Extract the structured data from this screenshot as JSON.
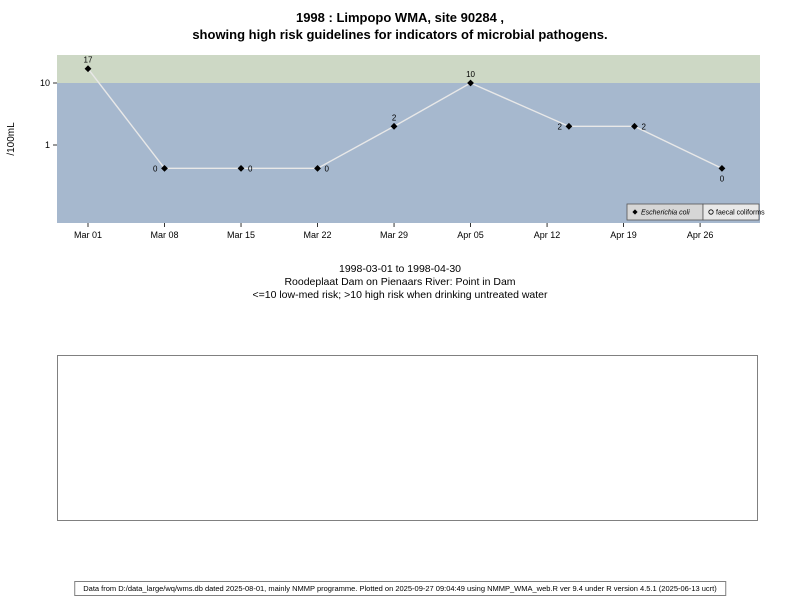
{
  "title": {
    "line1": "1998 : Limpopo WMA, site 90284 ,",
    "line2": "showing high risk guidelines for indicators of microbial pathogens."
  },
  "caption": {
    "line1": "1998-03-01 to 1998-04-30",
    "line2": "Roodeplaat Dam on Pienaars River: Point in Dam",
    "line3": "<=10 low-med risk; >10 high risk when drinking untreated water"
  },
  "footer": {
    "text": "Data from D:/data_large/wq/wms.db dated 2025-08-01, mainly NMMP programme. Plotted on 2025-09-27 09:04:49 using NMMP_WMA_web.R ver 9.4 under R version 4.5.1 (2025-06-13 ucrt)"
  },
  "chart_data": {
    "type": "line",
    "title": "1998 : Limpopo WMA, site 90284, showing high risk guidelines for indicators of microbial pathogens",
    "y_scale": "log",
    "ylabel": "/100mL",
    "xlabel": "",
    "y_ticks": [
      10,
      1
    ],
    "x_tick_labels": [
      "Mar 01",
      "Mar 08",
      "Mar 15",
      "Mar 22",
      "Mar 29",
      "Apr 05",
      "Apr 12",
      "Apr 19",
      "Apr 26"
    ],
    "x_ticks_days": [
      0,
      7,
      14,
      21,
      28,
      35,
      42,
      49,
      56
    ],
    "x_range_note": "1998-03-01 to 1998-04-30",
    "high_risk_threshold": 10,
    "zero_plot_value": 0.42,
    "legend_position": "bottom-right-inside",
    "series": [
      {
        "name": "Escherichia coli",
        "marker": "diamond",
        "points": [
          {
            "day": 0,
            "value": 17,
            "label_pos": "above"
          },
          {
            "day": 7,
            "value": 0,
            "label_pos": "left"
          },
          {
            "day": 14,
            "value": 0,
            "label_pos": "right"
          },
          {
            "day": 21,
            "value": 0,
            "label_pos": "right"
          },
          {
            "day": 28,
            "value": 2,
            "label_pos": "above"
          },
          {
            "day": 35,
            "value": 10,
            "label_pos": "above"
          },
          {
            "day": 44,
            "value": 2,
            "label_pos": "left"
          },
          {
            "day": 50,
            "value": 2,
            "label_pos": "right"
          },
          {
            "day": 58,
            "value": 0,
            "label_pos": "below"
          }
        ]
      },
      {
        "name": "faecal coliforms",
        "marker": "circle",
        "points": []
      }
    ],
    "colors": {
      "plot_bg": "#a6b8ce",
      "high_band_bg": "#cdd8c5",
      "line": "#e8e8e8",
      "marker": "#000000",
      "legend_cell1_bg": "#d6d6d6",
      "legend_cell2_bg": "#e9e9e9"
    }
  }
}
